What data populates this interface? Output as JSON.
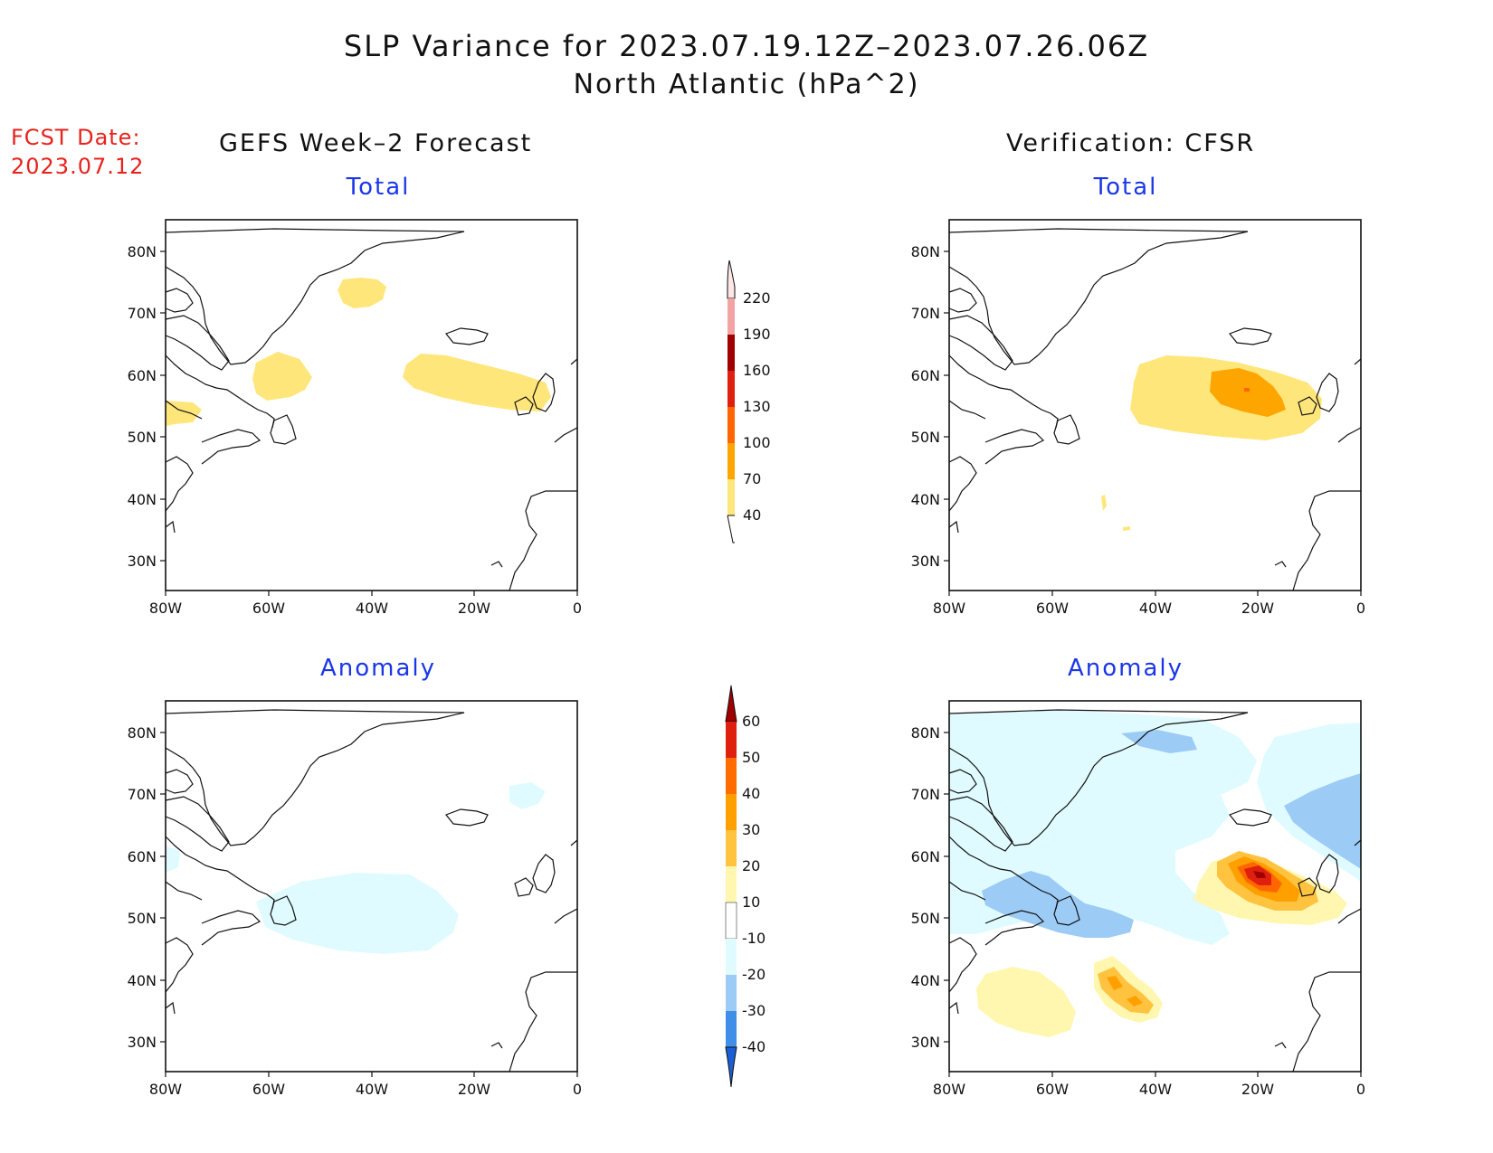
{
  "title": {
    "line1": "SLP Variance for 2023.07.19.12Z–2023.07.26.06Z",
    "line2": "North Atlantic (hPa^2)"
  },
  "fcst": {
    "label": "FCST Date:",
    "date": "2023.07.12"
  },
  "columns": {
    "left": "GEFS Week–2 Forecast",
    "right": "Verification: CFSR"
  },
  "panel_titles": {
    "total": "Total",
    "anomaly": "Anomaly"
  },
  "axes": {
    "lat_ticks": [
      "80N",
      "70N",
      "60N",
      "50N",
      "40N",
      "30N"
    ],
    "lon_ticks": [
      "80W",
      "60W",
      "40W",
      "20W",
      "0"
    ]
  },
  "colors": {
    "var_40": "#ffe67a",
    "var_70": "#ffa500",
    "var_100": "#ff6600",
    "var_130": "#e0200f",
    "var_160": "#a00000",
    "var_190": "#f2a3a3",
    "var_220": "#fde6e6",
    "anom_10": "#fff7b0",
    "anom_20": "#ffc340",
    "anom_30": "#ffa000",
    "anom_40": "#ff6d00",
    "anom_50": "#e0200f",
    "anom_60": "#a00000",
    "anom_m10": "#e0fbff",
    "anom_m20": "#9ccbf5",
    "anom_m30": "#3f8fe8",
    "anom_m40": "#1a5fd6"
  },
  "colorbars": {
    "variance": [
      "40",
      "70",
      "100",
      "130",
      "160",
      "190",
      "220"
    ],
    "anomaly": [
      "-40",
      "-30",
      "-20",
      "-10",
      "10",
      "20",
      "30",
      "40",
      "50",
      "60"
    ]
  }
}
